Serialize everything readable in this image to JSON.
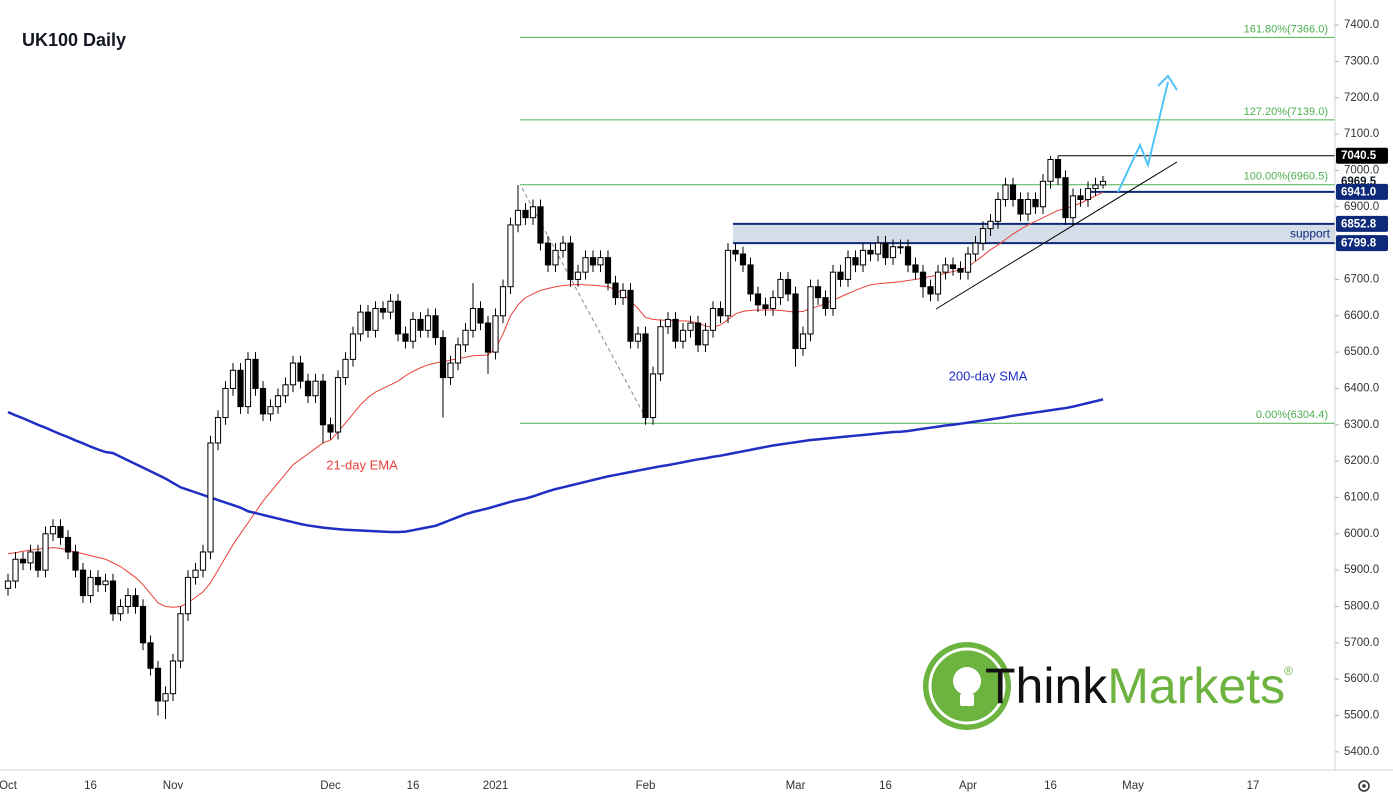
{
  "chart_data": {
    "type": "candlestick",
    "title": "UK100 Daily",
    "categories": [
      "Oct",
      null,
      null,
      null,
      null,
      null,
      null,
      null,
      null,
      null,
      null,
      "16",
      null,
      null,
      null,
      null,
      null,
      null,
      null,
      null,
      null,
      null,
      "Nov",
      null,
      null,
      null,
      null,
      null,
      null,
      null,
      null,
      null,
      null,
      null,
      null,
      null,
      null,
      null,
      null,
      null,
      null,
      null,
      null,
      "Dec",
      null,
      null,
      null,
      null,
      null,
      null,
      null,
      null,
      null,
      null,
      "16",
      null,
      null,
      null,
      null,
      null,
      null,
      null,
      null,
      null,
      null,
      "2021",
      null,
      null,
      null,
      null,
      null,
      null,
      null,
      null,
      null,
      null,
      null,
      null,
      null,
      null,
      null,
      null,
      null,
      null,
      null,
      "Feb",
      null,
      null,
      null,
      null,
      null,
      null,
      null,
      null,
      null,
      null,
      null,
      null,
      null,
      null,
      null,
      null,
      null,
      null,
      null,
      "Mar",
      null,
      null,
      null,
      null,
      null,
      null,
      null,
      null,
      null,
      null,
      null,
      "16",
      null,
      null,
      null,
      null,
      null,
      null,
      null,
      null,
      null,
      null,
      "Apr",
      null,
      null,
      null,
      null,
      null,
      null,
      null,
      null,
      null,
      null,
      "16",
      null,
      null,
      null,
      null,
      null,
      null,
      null,
      null,
      null,
      null,
      "May",
      null,
      null,
      null,
      null,
      null,
      null,
      null,
      null,
      null,
      null,
      null,
      null,
      null,
      null,
      null,
      "17"
    ],
    "open": [
      5850,
      5870,
      5930,
      5920,
      5950,
      5900,
      6000,
      6020,
      5990,
      5950,
      5900,
      5830,
      5880,
      5860,
      5870,
      5780,
      5800,
      5830,
      5800,
      5700,
      5630,
      5540,
      5560,
      5650,
      5780,
      5880,
      5900,
      5950,
      6250,
      6320,
      6400,
      6450,
      6350,
      6480,
      6400,
      6330,
      6350,
      6380,
      6410,
      6470,
      6420,
      6380,
      6420,
      6300,
      6280,
      6430,
      6480,
      6550,
      6610,
      6560,
      6620,
      6610,
      6640,
      6550,
      6530,
      6590,
      6560,
      6600,
      6540,
      6430,
      6470,
      6520,
      6560,
      6620,
      6580,
      6500,
      6600,
      6680,
      6850,
      6890,
      6870,
      6900,
      6800,
      6740,
      6780,
      6800,
      6700,
      6720,
      6760,
      6740,
      6760,
      6690,
      6650,
      6670,
      6530,
      6550,
      6320,
      6440,
      6570,
      6590,
      6530,
      6560,
      6580,
      6520,
      6560,
      6620,
      6600,
      6780,
      6770,
      6740,
      6660,
      6630,
      6620,
      6650,
      6700,
      6660,
      6510,
      6550,
      6680,
      6650,
      6620,
      6720,
      6700,
      6760,
      6740,
      6780,
      6770,
      6800,
      6760,
      6790,
      6790,
      6740,
      6720,
      6680,
      6660,
      6720,
      6740,
      6730,
      6720,
      6770,
      6800,
      6840,
      6860,
      6920,
      6960,
      6920,
      6880,
      6920,
      6900,
      6970,
      7030,
      6980,
      6870,
      6930,
      6920,
      6950,
      6960,
      null,
      null,
      null,
      null,
      null,
      null,
      null,
      null,
      null,
      null,
      null,
      null,
      null,
      null,
      null,
      null,
      null,
      null,
      null,
      null
    ],
    "high": [
      5890,
      5950,
      5950,
      5970,
      5970,
      6020,
      6040,
      6040,
      6010,
      5970,
      5920,
      5900,
      5900,
      5890,
      5890,
      5820,
      5850,
      5850,
      5820,
      5720,
      5650,
      5580,
      5670,
      5800,
      5900,
      5920,
      5970,
      6270,
      6340,
      6420,
      6470,
      6470,
      6500,
      6500,
      6420,
      6370,
      6400,
      6430,
      6490,
      6490,
      6440,
      6440,
      6440,
      6320,
      6450,
      6500,
      6570,
      6630,
      6630,
      6640,
      6640,
      6660,
      6660,
      6570,
      6610,
      6610,
      6620,
      6620,
      6560,
      6490,
      6540,
      6580,
      6690,
      6640,
      6600,
      6620,
      6700,
      6870,
      6960,
      6910,
      6920,
      6920,
      6820,
      6800,
      6820,
      6820,
      6740,
      6780,
      6780,
      6780,
      6780,
      6710,
      6690,
      6690,
      6570,
      6570,
      6460,
      6590,
      6610,
      6610,
      6580,
      6600,
      6600,
      6580,
      6640,
      6640,
      6800,
      6800,
      6790,
      6760,
      6680,
      6650,
      6670,
      6720,
      6720,
      6680,
      6570,
      6700,
      6700,
      6670,
      6740,
      6740,
      6780,
      6780,
      6800,
      6800,
      6820,
      6820,
      6810,
      6810,
      6810,
      6760,
      6740,
      6700,
      6740,
      6760,
      6760,
      6750,
      6790,
      6820,
      6860,
      6880,
      6940,
      6980,
      6980,
      6940,
      6940,
      6940,
      6990,
      7040,
      7040,
      7000,
      6950,
      6950,
      6970,
      6980,
      6985,
      null,
      null,
      null,
      null,
      null,
      null,
      null,
      null,
      null,
      null,
      null,
      null,
      null,
      null,
      null,
      null,
      null,
      null,
      null,
      null
    ],
    "low": [
      5830,
      5850,
      5900,
      5900,
      5880,
      5880,
      5980,
      5970,
      5930,
      5880,
      5810,
      5810,
      5840,
      5840,
      5760,
      5760,
      5780,
      5780,
      5680,
      5610,
      5500,
      5490,
      5540,
      5630,
      5760,
      5860,
      5880,
      5930,
      6230,
      6300,
      6380,
      6330,
      6330,
      6380,
      6310,
      6310,
      6330,
      6360,
      6390,
      6400,
      6360,
      6360,
      6250,
      6260,
      6260,
      6410,
      6460,
      6530,
      6540,
      6540,
      6590,
      6590,
      6530,
      6510,
      6510,
      6540,
      6540,
      6520,
      6320,
      6410,
      6450,
      6500,
      6540,
      6560,
      6440,
      6480,
      6580,
      6660,
      6830,
      6850,
      6850,
      6780,
      6720,
      6720,
      6760,
      6680,
      6680,
      6700,
      6720,
      6720,
      6670,
      6630,
      6630,
      6510,
      6510,
      6300,
      6300,
      6420,
      6550,
      6510,
      6510,
      6540,
      6500,
      6500,
      6540,
      6580,
      6580,
      6750,
      6720,
      6640,
      6610,
      6600,
      6600,
      6630,
      6640,
      6460,
      6490,
      6530,
      6630,
      6600,
      6600,
      6680,
      6680,
      6720,
      6720,
      6750,
      6750,
      6740,
      6740,
      6770,
      6720,
      6700,
      6650,
      6640,
      6640,
      6700,
      6710,
      6700,
      6700,
      6750,
      6780,
      6820,
      6840,
      6900,
      6900,
      6860,
      6860,
      6880,
      6880,
      6950,
      6960,
      6850,
      6850,
      6900,
      6900,
      6930,
      6950,
      null,
      null,
      null,
      null,
      null,
      null,
      null,
      null,
      null,
      null,
      null,
      null,
      null,
      null,
      null,
      null,
      null,
      null,
      null,
      null
    ],
    "close": [
      5870,
      5930,
      5920,
      5950,
      5900,
      6000,
      6020,
      5990,
      5950,
      5900,
      5830,
      5880,
      5860,
      5870,
      5780,
      5800,
      5830,
      5800,
      5700,
      5630,
      5540,
      5560,
      5650,
      5780,
      5880,
      5900,
      5950,
      6250,
      6320,
      6400,
      6450,
      6350,
      6480,
      6400,
      6330,
      6350,
      6380,
      6410,
      6470,
      6420,
      6380,
      6420,
      6300,
      6280,
      6430,
      6480,
      6550,
      6610,
      6560,
      6620,
      6610,
      6640,
      6550,
      6530,
      6590,
      6560,
      6600,
      6540,
      6430,
      6470,
      6520,
      6560,
      6620,
      6580,
      6500,
      6600,
      6680,
      6850,
      6890,
      6870,
      6900,
      6800,
      6740,
      6780,
      6800,
      6700,
      6720,
      6760,
      6740,
      6760,
      6690,
      6650,
      6670,
      6530,
      6550,
      6320,
      6440,
      6570,
      6590,
      6530,
      6560,
      6580,
      6520,
      6560,
      6620,
      6600,
      6780,
      6770,
      6740,
      6660,
      6630,
      6620,
      6650,
      6700,
      6660,
      6510,
      6550,
      6680,
      6650,
      6620,
      6720,
      6700,
      6760,
      6740,
      6780,
      6770,
      6800,
      6760,
      6790,
      6790,
      6740,
      6720,
      6680,
      6660,
      6720,
      6740,
      6730,
      6720,
      6770,
      6800,
      6840,
      6860,
      6920,
      6960,
      6920,
      6880,
      6920,
      6900,
      6970,
      7030,
      6980,
      6870,
      6930,
      6920,
      6950,
      6960,
      6970,
      null,
      null,
      null,
      null,
      null,
      null,
      null,
      null,
      null,
      null,
      null,
      null,
      null,
      null,
      null,
      null,
      null,
      null,
      null,
      null
    ],
    "up_color": "#ffffff",
    "down_color": "#000000",
    "lines": [
      {
        "name": "21-day EMA",
        "color": "#e8413a",
        "values": [
          5945,
          5948,
          5952,
          5955,
          5958,
          5960,
          5962,
          5960,
          5955,
          5950,
          5945,
          5940,
          5935,
          5930,
          5920,
          5910,
          5895,
          5880,
          5860,
          5835,
          5810,
          5800,
          5798,
          5800,
          5810,
          5825,
          5840,
          5865,
          5900,
          5935,
          5970,
          6000,
          6030,
          6060,
          6090,
          6115,
          6140,
          6165,
          6190,
          6205,
          6220,
          6235,
          6250,
          6258,
          6280,
          6305,
          6330,
          6355,
          6375,
          6390,
          6400,
          6410,
          6420,
          6435,
          6447,
          6457,
          6465,
          6470,
          6474,
          6478,
          6482,
          6486,
          6490,
          6491,
          6492,
          6510,
          6550,
          6600,
          6630,
          6650,
          6660,
          6670,
          6675,
          6680,
          6683,
          6685,
          6686,
          6685,
          6684,
          6682,
          6680,
          6672,
          6660,
          6640,
          6620,
          6595,
          6590,
          6588,
          6588,
          6586,
          6586,
          6585,
          6580,
          6572,
          6568,
          6575,
          6590,
          6605,
          6612,
          6615,
          6616,
          6616,
          6616,
          6615,
          6612,
          6610,
          6612,
          6620,
          6626,
          6633,
          6643,
          6652,
          6661,
          6670,
          6678,
          6685,
          6688,
          6690,
          6692,
          6694,
          6697,
          6700,
          6704,
          6708,
          6712,
          6717,
          6722,
          6726,
          6735,
          6750,
          6765,
          6782,
          6795,
          6810,
          6825,
          6838,
          6850,
          6860,
          6870,
          6880,
          6890,
          6895,
          6902,
          6910,
          6920,
          6930,
          6940,
          null,
          null,
          null,
          null,
          null,
          null,
          null,
          null,
          null,
          null,
          null,
          null,
          null,
          null,
          null,
          null,
          null,
          null,
          null,
          null
        ]
      },
      {
        "name": "200-day SMA",
        "color": "#1f2fc4",
        "values": [
          6335,
          6326,
          6318,
          6309,
          6300,
          6292,
          6283,
          6274,
          6266,
          6257,
          6249,
          6240,
          6232,
          6225,
          6222,
          6212,
          6202,
          6192,
          6182,
          6172,
          6162,
          6152,
          6140,
          6128,
          6121,
          6114,
          6107,
          6100,
          6093,
          6086,
          6079,
          6072,
          6062,
          6057,
          6052,
          6047,
          6042,
          6037,
          6032,
          6027,
          6023,
          6020,
          6017,
          6015,
          6013,
          6011,
          6010,
          6009,
          6008,
          6007,
          6006,
          6005,
          6005,
          6006,
          6010,
          6014,
          6018,
          6022,
          6030,
          6038,
          6046,
          6054,
          6060,
          6065,
          6070,
          6076,
          6082,
          6088,
          6093,
          6097,
          6103,
          6110,
          6117,
          6123,
          6128,
          6133,
          6138,
          6143,
          6148,
          6153,
          6158,
          6162,
          6166,
          6170,
          6174,
          6178,
          6182,
          6186,
          6189,
          6193,
          6197,
          6201,
          6205,
          6208,
          6212,
          6215,
          6219,
          6223,
          6227,
          6231,
          6235,
          6239,
          6243,
          6246,
          6249,
          6252,
          6255,
          6258,
          6260,
          6262,
          6264,
          6266,
          6268,
          6270,
          6272,
          6274,
          6276,
          6278,
          6280,
          6281,
          6283,
          6286,
          6289,
          6292,
          6295,
          6298,
          6300,
          6303,
          6306,
          6309,
          6312,
          6315,
          6318,
          6321,
          6325,
          6328,
          6331,
          6334,
          6337,
          6340,
          6343,
          6346,
          6350,
          6355,
          6360,
          6365,
          6370,
          null,
          null,
          null,
          null,
          null,
          null,
          null,
          null,
          null,
          null,
          null,
          null,
          null,
          null,
          null,
          null,
          null,
          null,
          null,
          null
        ]
      }
    ],
    "fib_color": "#4caf50",
    "fib_levels": [
      {
        "value": 7366.0,
        "label": "161.80%(7366.0)"
      },
      {
        "value": 7139.0,
        "label": "127.20%(7139.0)"
      },
      {
        "value": 6960.5,
        "label": "100.00%(6960.5)"
      },
      {
        "value": 6304.4,
        "label": "0.00%(6304.4)"
      }
    ],
    "price_tags": [
      {
        "value": 7040.5,
        "label": "7040.5",
        "color": "#000000",
        "text_color": "#ffffff"
      },
      {
        "value": 6969.5,
        "label": "6969.5",
        "color": "#ffffff",
        "text_color": "#131722"
      },
      {
        "value": 6941.0,
        "label": "6941.0",
        "color": "#0d2a7a",
        "text_color": "#ffffff"
      },
      {
        "value": 6852.8,
        "label": "6852.8",
        "color": "#0d2a7a",
        "text_color": "#ffffff"
      },
      {
        "value": 6799.8,
        "label": "6799.8",
        "color": "#0d2a7a",
        "text_color": "#ffffff"
      }
    ],
    "zone_label": "support",
    "zone_color": "#c9d5e2",
    "ylim": [
      5350,
      7469
    ],
    "yticks": [
      {
        "value": 5400,
        "label": "5400.0"
      },
      {
        "value": 5500,
        "label": "5500.0"
      },
      {
        "value": 5600,
        "label": "5600.0"
      },
      {
        "value": 5700,
        "label": "5700.0"
      },
      {
        "value": 5800,
        "label": "5800.0"
      },
      {
        "value": 5900,
        "label": "5900.0"
      },
      {
        "value": 6000,
        "label": "6000.0"
      },
      {
        "value": 6100,
        "label": "6100.0"
      },
      {
        "value": 6200,
        "label": "6200.0"
      },
      {
        "value": 6300,
        "label": "6300.0"
      },
      {
        "value": 6400,
        "label": "6400.0"
      },
      {
        "value": 6500,
        "label": "6500.0"
      },
      {
        "value": 6600,
        "label": "6600.0"
      },
      {
        "value": 6700,
        "label": "6700.0"
      },
      {
        "value": 6800,
        "label": "6800.0"
      },
      {
        "value": 6900,
        "label": "6900.0"
      },
      {
        "value": 7000,
        "label": "7000.0"
      },
      {
        "value": 7100,
        "label": "7100.0"
      },
      {
        "value": 7200,
        "label": "7200.0"
      },
      {
        "value": 7300,
        "label": "7300.0"
      },
      {
        "value": 7400,
        "label": "7400.0"
      }
    ],
    "logo": {
      "part1": "Think",
      "part2": "Markets",
      "mark": "®"
    }
  }
}
